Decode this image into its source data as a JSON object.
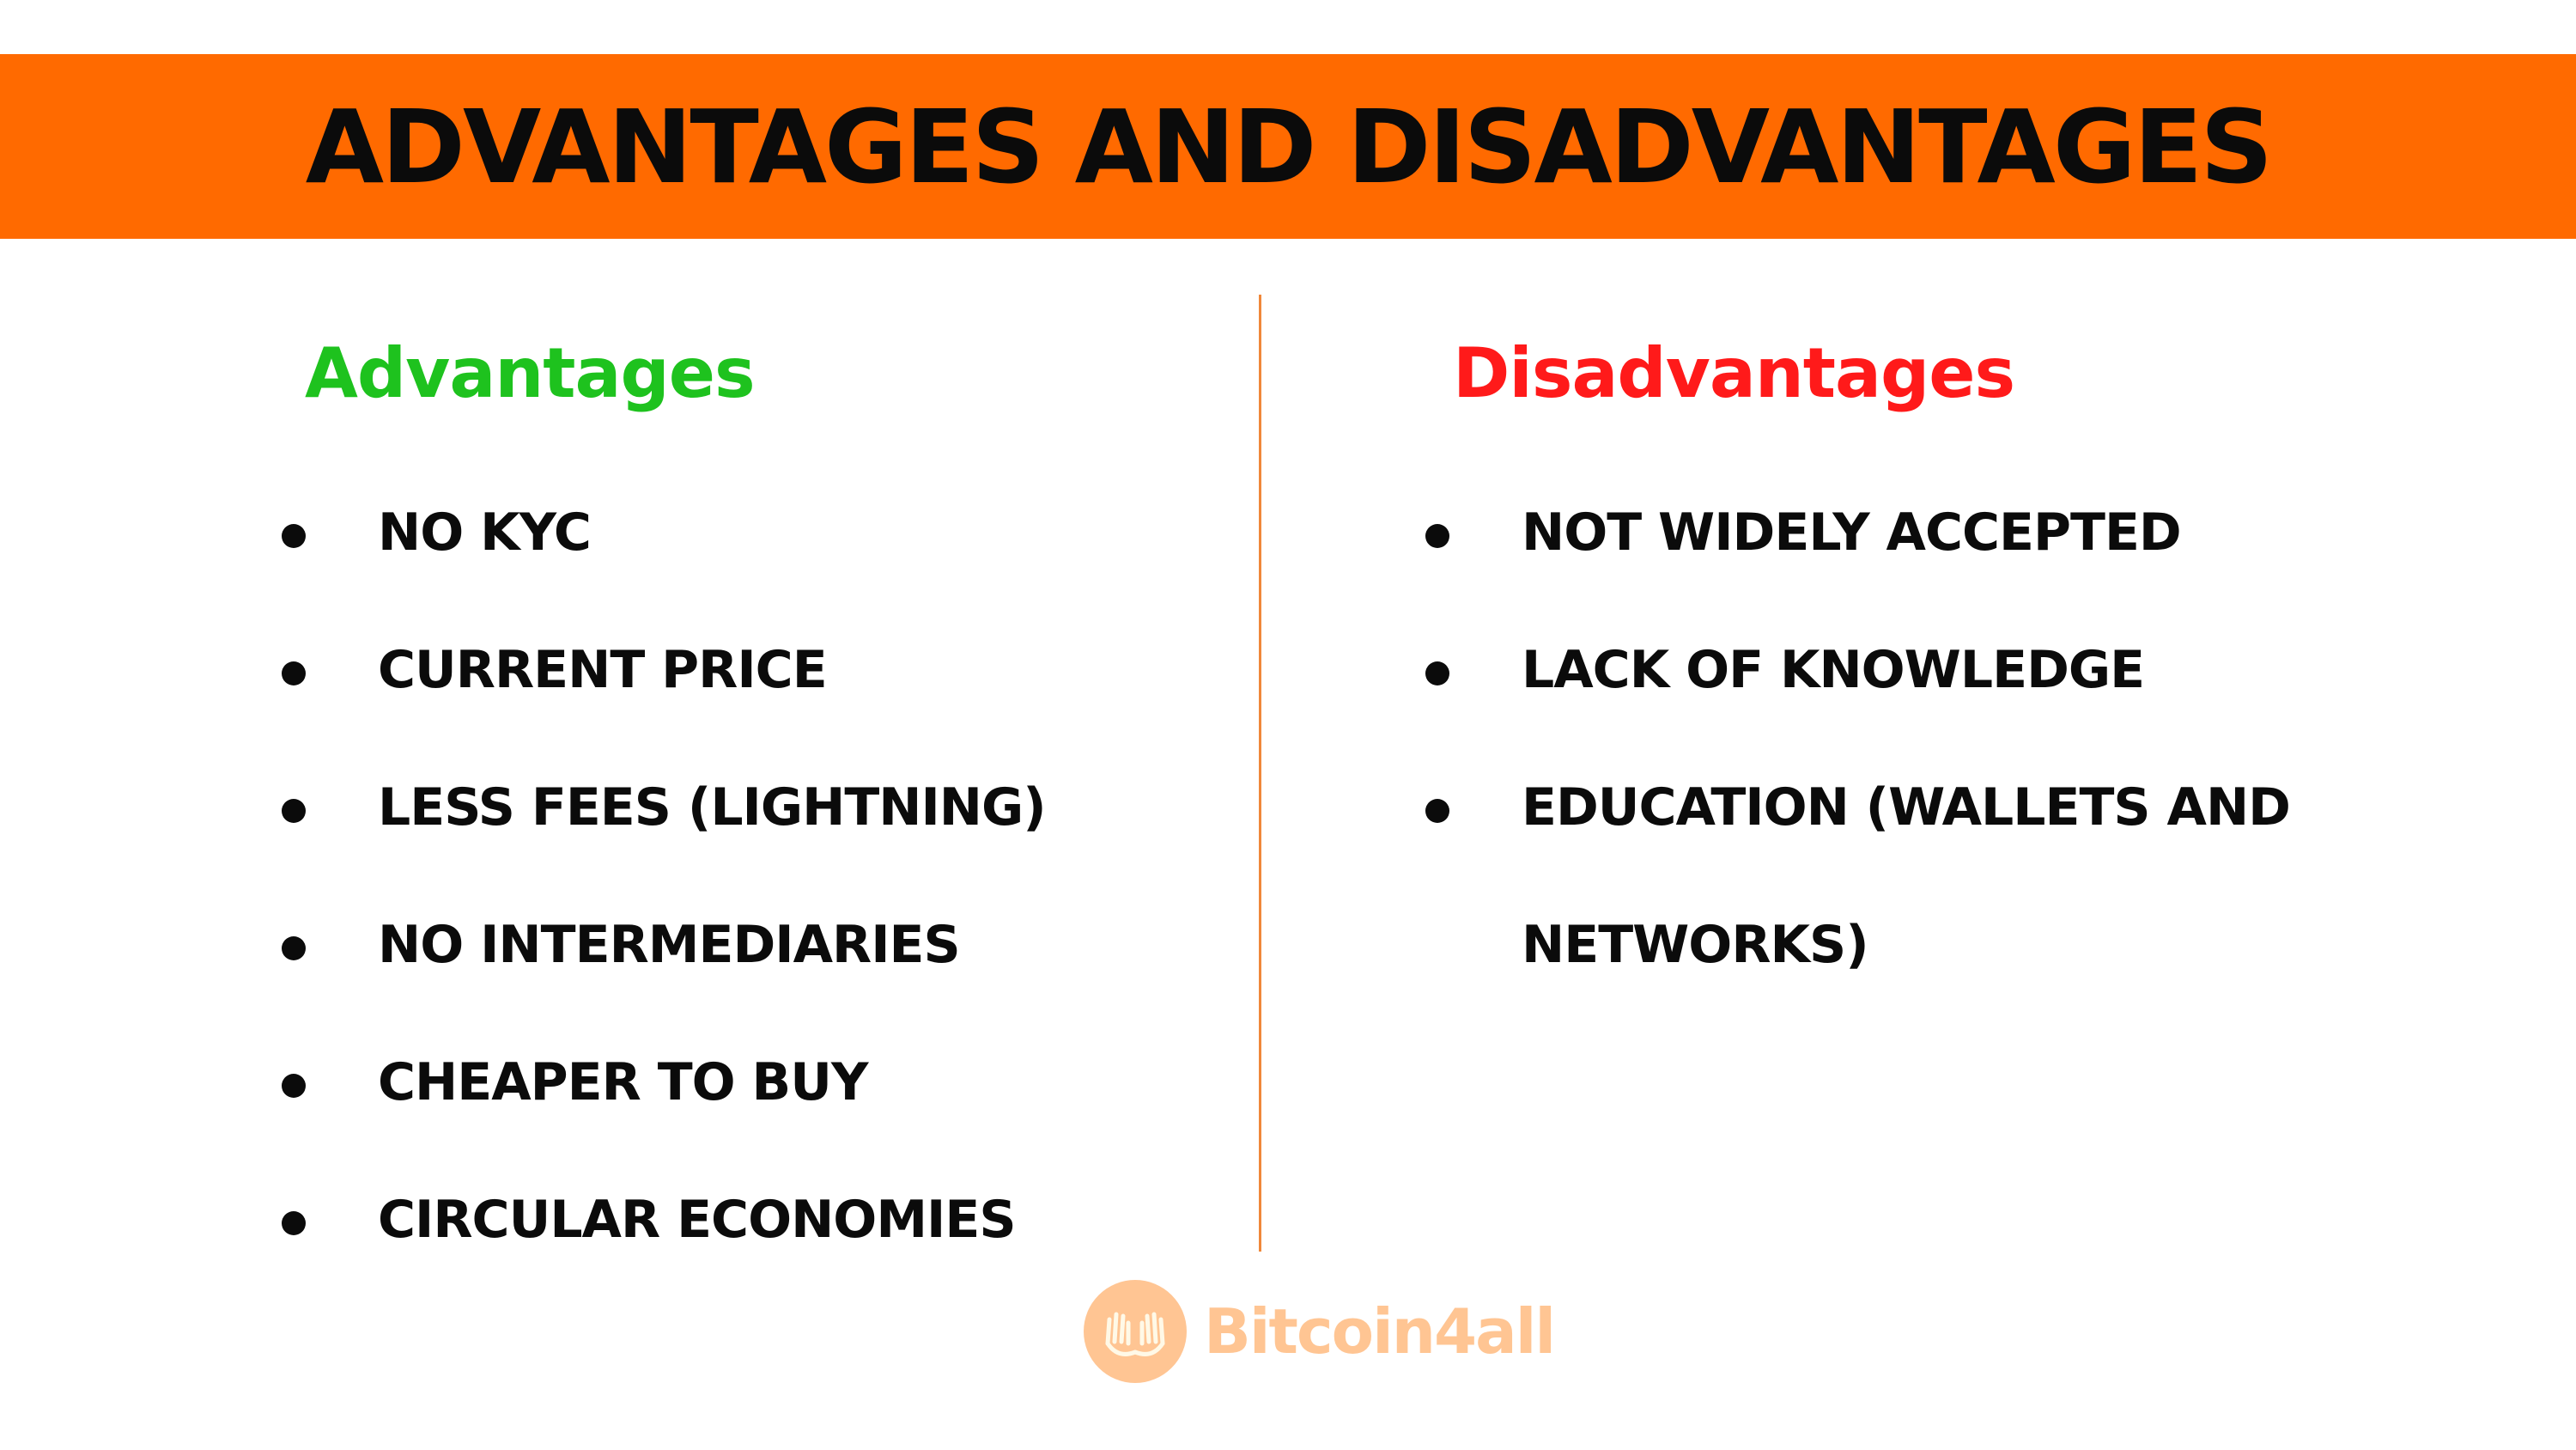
{
  "colors": {
    "banner": "#ff6a00",
    "advantages_heading": "#1ec21e",
    "disadvantages_heading": "#ff1a1a",
    "divider": "#f0883a",
    "brand": "#ff8c2a"
  },
  "title": "ADVANTAGES AND DISADVANTAGES",
  "advantages": {
    "heading": "Advantages",
    "items": [
      "NO KYC",
      "CURRENT PRICE",
      "LESS FEES (LIGHTNING)",
      "NO INTERMEDIARIES",
      "CHEAPER TO BUY",
      "CIRCULAR ECONOMIES"
    ]
  },
  "disadvantages": {
    "heading": "Disadvantages",
    "items": [
      "NOT WIDELY ACCEPTED",
      "LACK OF KNOWLEDGE",
      "EDUCATION (WALLETS AND"
    ],
    "continuation": "NETWORKS)"
  },
  "brand": {
    "name": "Bitcoin4all",
    "logo_icon": "hands-icon"
  }
}
